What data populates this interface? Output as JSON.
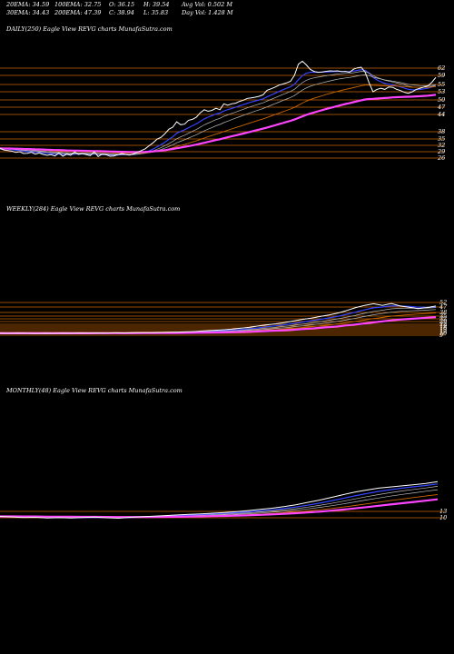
{
  "header": {
    "ema20": "20EMA: 34.59",
    "ema100": "100EMA: 32.75",
    "open": "O: 36.15",
    "high": "H: 39.54",
    "avgvol": "Avg Vol: 0.502  M",
    "ema30": "30EMA: 34.43",
    "ema200": "200EMA: 47.39",
    "close": "C: 38.94",
    "low": "L: 35.83",
    "dayvol": "Day Vol: 1.428  M"
  },
  "colors": {
    "background": "#000000",
    "price": "#ffffff",
    "ema_short": "#3344ff",
    "ema_mid": "#bbbbbb",
    "ema_long": "#ff44ff",
    "ema_orange": "#cc6600",
    "gridline": "#cc6600"
  },
  "chart_data": [
    {
      "type": "line",
      "title": "DAILY(250) Eagle   View  REVG charts MunafaSutra.com",
      "y_ticks": [
        "62",
        "59",
        "55",
        "53",
        "50",
        "47",
        "44",
        "38",
        "35",
        "32",
        "29",
        "26"
      ],
      "note": "Ticks printed on right axis against horizontal reference lines",
      "series": [
        {
          "values": [
            34.1,
            33.6,
            33.4,
            33.2,
            32.8,
            33.0,
            32.4,
            32.5,
            32.8,
            32.2,
            32.6,
            32.1,
            31.8,
            32.0,
            31.6,
            32.6,
            31.5,
            32.2,
            31.8,
            32.9,
            32.1,
            32.4,
            32.0,
            31.7,
            33.0,
            31.4,
            32.2,
            32.0,
            31.5,
            31.6,
            32.0,
            32.4,
            32.1,
            31.9,
            32.3,
            32.8,
            33.4,
            34.0,
            35.0,
            36.0,
            37.2,
            37.8,
            39.0,
            40.5,
            41.2,
            43.0,
            42.0,
            42.2,
            43.5,
            43.8,
            44.5,
            46.0,
            47.0,
            46.5,
            46.8,
            47.5,
            47.0,
            49.0,
            48.5,
            49.0,
            49.2,
            49.8,
            50.2,
            50.8,
            51.0,
            51.2,
            51.5,
            52.0,
            53.5,
            54.0,
            54.5,
            55.2,
            55.6,
            56.0,
            56.5,
            58.5,
            62.2,
            63.2,
            62.0,
            60.5,
            59.8,
            59.5,
            59.6,
            59.8,
            60.0,
            59.9,
            60.0,
            59.7,
            59.8,
            59.5,
            60.5,
            61.0,
            61.2,
            59.5,
            56.0,
            53.0,
            53.8,
            54.2,
            53.8,
            54.6,
            54.5,
            53.8,
            53.4,
            52.8,
            52.5,
            53.0,
            53.8,
            54.2,
            54.6,
            55.0,
            56.2,
            57.8
          ]
        }
      ]
    },
    {
      "type": "line",
      "title": "WEEKLY(284) Eagle   View  REVG charts MunafaSutra.com",
      "y_ticks": [
        "52",
        "47",
        "38",
        "35",
        "32",
        "29",
        "22",
        "19",
        "16",
        "13",
        "12",
        "10",
        "9"
      ],
      "series": [
        {
          "values": [
            9.2,
            9.0,
            9.3,
            9.1,
            8.9,
            9.2,
            9.0,
            9.4,
            9.2,
            9.5,
            9.3,
            9.6,
            9.4,
            9.8,
            9.6,
            10.0,
            10.2,
            10.0,
            10.4,
            10.8,
            11.0,
            11.5,
            12.0,
            12.8,
            13.6,
            14.5,
            15.6,
            17.0,
            18.5,
            20.5,
            22.5,
            24.0,
            26.0,
            28.5,
            31.0,
            33.0,
            35.5,
            38.0,
            41.0,
            45.0,
            49.5,
            53.0,
            55.5,
            53.0,
            56.0,
            52.0,
            50.0,
            48.0,
            49.5,
            52.0
          ]
        }
      ]
    },
    {
      "type": "line",
      "title": "MONTHLY(48) Eagle   View  REVG charts MunafaSutra.com",
      "y_ticks": [
        "13",
        "10"
      ],
      "series": [
        {
          "values": [
            12.0,
            11.2,
            10.5,
            10.8,
            9.9,
            10.3,
            9.8,
            10.5,
            11.0,
            10.2,
            9.6,
            10.8,
            11.5,
            12.2,
            13.0,
            13.8,
            14.5,
            15.2,
            16.0,
            17.0,
            18.2,
            19.5,
            21.0,
            22.5,
            24.5,
            27.0,
            30.0,
            33.0,
            36.5,
            40.0,
            43.5,
            46.0,
            48.5,
            50.0,
            51.5,
            53.0,
            54.5,
            57.0
          ]
        }
      ]
    }
  ]
}
